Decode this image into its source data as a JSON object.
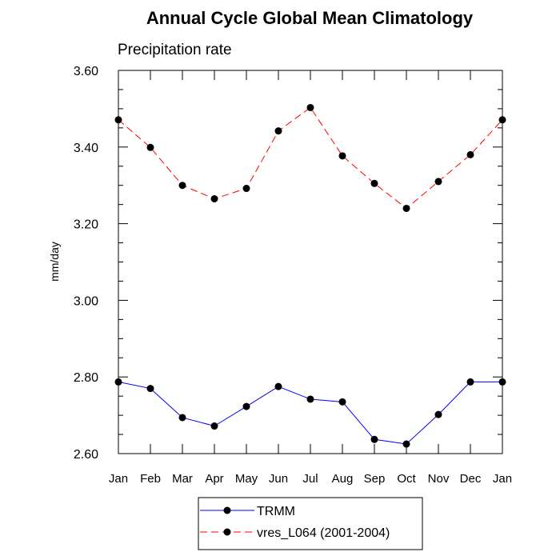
{
  "chart_data": {
    "type": "line",
    "title": "Annual Cycle Global Mean Climatology",
    "subtitle": "Precipitation rate",
    "xlabel": "",
    "ylabel": "mm/day",
    "categories": [
      "Jan",
      "Feb",
      "Mar",
      "Apr",
      "May",
      "Jun",
      "Jul",
      "Aug",
      "Sep",
      "Oct",
      "Nov",
      "Dec",
      "Jan"
    ],
    "ylim": [
      2.6,
      3.6
    ],
    "yticks": [
      "2.60",
      "2.80",
      "3.00",
      "3.20",
      "3.40",
      "3.60"
    ],
    "ytick_values": [
      2.6,
      2.8,
      3.0,
      3.2,
      3.4,
      3.6
    ],
    "grid": false,
    "legend_position": "bottom-center",
    "series": [
      {
        "name": "TRMM",
        "color": "#0000ff",
        "line_style": "solid",
        "marker": "filled-circle",
        "values": [
          2.787,
          2.77,
          2.694,
          2.672,
          2.723,
          2.775,
          2.742,
          2.735,
          2.637,
          2.625,
          2.702,
          2.787,
          2.787
        ]
      },
      {
        "name": "vres_L064 (2001-2004)",
        "color": "#ff0000",
        "line_style": "dashed",
        "marker": "filled-circle",
        "values": [
          3.471,
          3.399,
          3.3,
          3.265,
          3.292,
          3.442,
          3.503,
          3.377,
          3.305,
          3.24,
          3.31,
          3.38,
          3.471
        ]
      }
    ]
  }
}
